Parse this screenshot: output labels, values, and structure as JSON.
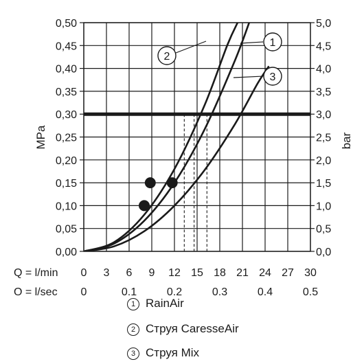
{
  "chart_data": {
    "type": "line",
    "ylabel_left": "MPa",
    "ylabel_right": "bar",
    "x_rows": [
      {
        "label": "Q = l/min",
        "ticks": [
          {
            "v": 0,
            "t": "0"
          },
          {
            "v": 3,
            "t": "3"
          },
          {
            "v": 6,
            "t": "6"
          },
          {
            "v": 9,
            "t": "9"
          },
          {
            "v": 12,
            "t": "12"
          },
          {
            "v": 15,
            "t": "15"
          },
          {
            "v": 18,
            "t": "18"
          },
          {
            "v": 21,
            "t": "21"
          },
          {
            "v": 24,
            "t": "24"
          },
          {
            "v": 27,
            "t": "27"
          },
          {
            "v": 30,
            "t": "30"
          }
        ]
      },
      {
        "label": "Q = l/sec",
        "ticks": [
          {
            "v": 0,
            "t": "0"
          },
          {
            "v": 6,
            "t": "0,1"
          },
          {
            "v": 12,
            "t": "0,2"
          },
          {
            "v": 18,
            "t": "0,3"
          },
          {
            "v": 24,
            "t": "0,4"
          },
          {
            "v": 30,
            "t": "0,5"
          }
        ]
      }
    ],
    "xlim": [
      0,
      30
    ],
    "ylim": [
      0,
      0.5
    ],
    "y_ticks_left": [
      "0,00",
      "0,05",
      "0,10",
      "0,15",
      "0,20",
      "0,25",
      "0,30",
      "0,35",
      "0,40",
      "0,45",
      "0,50"
    ],
    "y_ticks_right": [
      "0,0",
      "0,5",
      "1,0",
      "1,5",
      "2,0",
      "2,5",
      "3,0",
      "3,5",
      "4,0",
      "4,5",
      "5,0"
    ],
    "grid": true,
    "reference_line": {
      "y": 0.3
    },
    "series": [
      {
        "marker": "1",
        "x": [
          0,
          4,
          8,
          12,
          16,
          20,
          22
        ],
        "y": [
          0,
          0.017,
          0.067,
          0.15,
          0.267,
          0.417,
          0.505
        ],
        "points": [
          {
            "x": 8.8,
            "y": 0.15
          }
        ],
        "drop_x": 14.6
      },
      {
        "marker": "2",
        "x": [
          0,
          4,
          8,
          12,
          16,
          19,
          20.5
        ],
        "y": [
          0,
          0.02,
          0.08,
          0.18,
          0.32,
          0.451,
          0.505
        ],
        "points": [
          {
            "x": 8.0,
            "y": 0.1
          }
        ],
        "drop_x": 13.3
      },
      {
        "marker": "3",
        "x": [
          0,
          4,
          8,
          12,
          16,
          20,
          23,
          24.5
        ],
        "y": [
          0,
          0.011,
          0.044,
          0.1,
          0.178,
          0.278,
          0.367,
          0.405
        ],
        "points": [
          {
            "x": 11.7,
            "y": 0.15
          }
        ],
        "drop_x": 16.3
      }
    ],
    "legend": [
      {
        "marker": "1",
        "label": "RainAir"
      },
      {
        "marker": "2",
        "label": "Струя CaresseAir"
      },
      {
        "marker": "3",
        "label": "Струя Mix"
      }
    ],
    "colors": {
      "line": "#1a1a1a",
      "grid": "#1a1a1a",
      "background": "#ffffff"
    }
  }
}
